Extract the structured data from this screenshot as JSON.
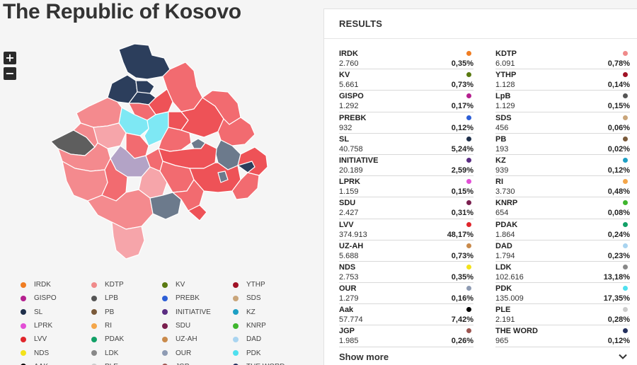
{
  "title": "The Republic of Kosovo",
  "zoom": {
    "in_label": "+",
    "out_label": "−"
  },
  "results": {
    "heading": "RESULTS",
    "show_more": "Show more",
    "left": [
      {
        "name": "IRDK",
        "votes": "2.760",
        "pct": "0,35%",
        "color": "#f07d22"
      },
      {
        "name": "KV",
        "votes": "5.661",
        "pct": "0,73%",
        "color": "#5a7a12"
      },
      {
        "name": "GISPO",
        "votes": "1.292",
        "pct": "0,17%",
        "color": "#b5208f"
      },
      {
        "name": "PREBK",
        "votes": "932",
        "pct": "0,12%",
        "color": "#2d5fd6"
      },
      {
        "name": "SL",
        "votes": "40.758",
        "pct": "5,24%",
        "color": "#1f2f4a"
      },
      {
        "name": "INITIATIVE",
        "votes": "20.189",
        "pct": "2,59%",
        "color": "#5b2d82"
      },
      {
        "name": "LPRK",
        "votes": "1.159",
        "pct": "0,15%",
        "color": "#e34fd6"
      },
      {
        "name": "SDU",
        "votes": "2.427",
        "pct": "0,31%",
        "color": "#7a1f4e"
      },
      {
        "name": "LVV",
        "votes": "374.913",
        "pct": "48,17%",
        "color": "#e0262c"
      },
      {
        "name": "UZ-AH",
        "votes": "5.688",
        "pct": "0,73%",
        "color": "#c98a4b"
      },
      {
        "name": "NDS",
        "votes": "2.753",
        "pct": "0,35%",
        "color": "#f3e21a"
      },
      {
        "name": "OUR",
        "votes": "1.279",
        "pct": "0,16%",
        "color": "#8e9bb3"
      },
      {
        "name": "Aak",
        "votes": "57.774",
        "pct": "7,42%",
        "color": "#000000"
      },
      {
        "name": "JGP",
        "votes": "1.985",
        "pct": "0,26%",
        "color": "#9c5550"
      }
    ],
    "right": [
      {
        "name": "KDTP",
        "votes": "6.091",
        "pct": "0,78%",
        "color": "#f08a8a"
      },
      {
        "name": "YTHP",
        "votes": "1.128",
        "pct": "0,14%",
        "color": "#a01226"
      },
      {
        "name": "LpB",
        "votes": "1.129",
        "pct": "0,15%",
        "color": "#555555"
      },
      {
        "name": "SDS",
        "votes": "456",
        "pct": "0,06%",
        "color": "#c9a57a"
      },
      {
        "name": "PB",
        "votes": "193",
        "pct": "0,02%",
        "color": "#7a5a3a"
      },
      {
        "name": "KZ",
        "votes": "939",
        "pct": "0,12%",
        "color": "#1d9fc4"
      },
      {
        "name": "RI",
        "votes": "3.730",
        "pct": "0,48%",
        "color": "#f4a64a"
      },
      {
        "name": "KNRP",
        "votes": "654",
        "pct": "0,08%",
        "color": "#3fb62e"
      },
      {
        "name": "PDAK",
        "votes": "1.864",
        "pct": "0,24%",
        "color": "#12a067"
      },
      {
        "name": "DAD",
        "votes": "1.794",
        "pct": "0,23%",
        "color": "#a9d4f0"
      },
      {
        "name": "LDK",
        "votes": "102.616",
        "pct": "13,18%",
        "color": "#888888"
      },
      {
        "name": "PDK",
        "votes": "135.009",
        "pct": "17,35%",
        "color": "#4fe0ef"
      },
      {
        "name": "PLE",
        "votes": "2.191",
        "pct": "0,28%",
        "color": "#cccccc"
      },
      {
        "name": "THE WORD",
        "votes": "965",
        "pct": "0,12%",
        "color": "#24305e"
      }
    ]
  },
  "legend": [
    {
      "name": "IRDK",
      "color": "#f07d22"
    },
    {
      "name": "KDTP",
      "color": "#f08a8a"
    },
    {
      "name": "KV",
      "color": "#5a7a12"
    },
    {
      "name": "YTHP",
      "color": "#a01226"
    },
    {
      "name": "GISPO",
      "color": "#b5208f"
    },
    {
      "name": "LPB",
      "color": "#555555"
    },
    {
      "name": "PREBK",
      "color": "#2d5fd6"
    },
    {
      "name": "SDS",
      "color": "#c9a57a"
    },
    {
      "name": "SL",
      "color": "#1f2f4a"
    },
    {
      "name": "PB",
      "color": "#7a5a3a"
    },
    {
      "name": "INITIATIVE",
      "color": "#5b2d82"
    },
    {
      "name": "KZ",
      "color": "#1d9fc4"
    },
    {
      "name": "LPRK",
      "color": "#e34fd6"
    },
    {
      "name": "RI",
      "color": "#f4a64a"
    },
    {
      "name": "SDU",
      "color": "#7a1f4e"
    },
    {
      "name": "KNRP",
      "color": "#3fb62e"
    },
    {
      "name": "LVV",
      "color": "#e0262c"
    },
    {
      "name": "PDAK",
      "color": "#12a067"
    },
    {
      "name": "UZ-AH",
      "color": "#c98a4b"
    },
    {
      "name": "DAD",
      "color": "#a9d4f0"
    },
    {
      "name": "NDS",
      "color": "#f3e21a"
    },
    {
      "name": "LDK",
      "color": "#888888"
    },
    {
      "name": "OUR",
      "color": "#8e9bb3"
    },
    {
      "name": "PDK",
      "color": "#4fe0ef"
    },
    {
      "name": "AAK",
      "color": "#000000"
    },
    {
      "name": "PLE",
      "color": "#cccccc"
    },
    {
      "name": "JGP",
      "color": "#9c5550"
    },
    {
      "name": "THE WORD",
      "color": "#24305e"
    }
  ],
  "map": {
    "municipality_colors": {
      "lvv_light": "#f48a8e",
      "lvv_medium": "#f26b70",
      "lvv_strong": "#ee5257",
      "lvv_pale": "#f6a5aa",
      "srb_dark": "#2c3e5c",
      "pdk_cyan": "#7ee8f4",
      "ldk_grey": "#6c7a8c",
      "aak_dark": "#5e5e5e",
      "mixed_purple": "#b3a3c6"
    }
  }
}
